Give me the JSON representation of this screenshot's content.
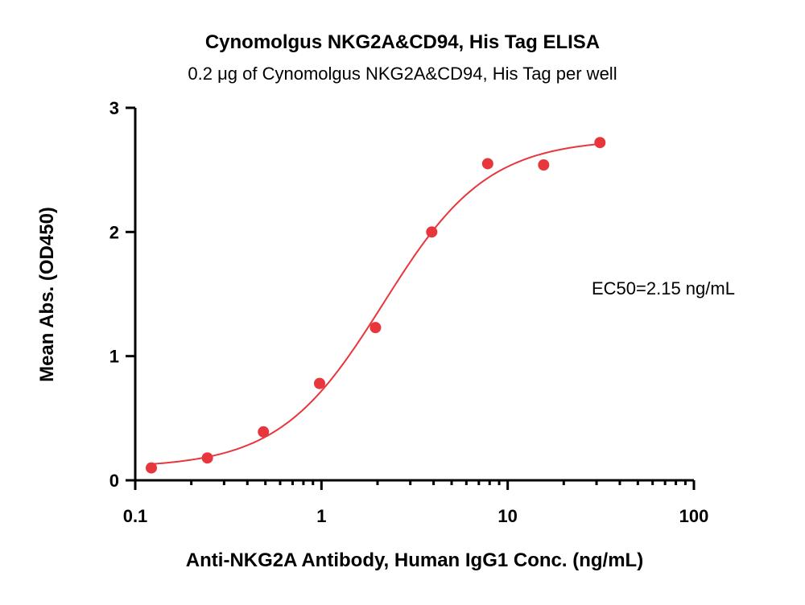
{
  "chart_data": {
    "type": "scatter",
    "title": "Cynomolgus NKG2A&CD94, His Tag ELISA",
    "subtitle": "0.2 μg of Cynomolgus NKG2A&CD94, His Tag per well",
    "xlabel": "Anti-NKG2A Antibody, Human IgG1 Conc. (ng/mL)",
    "ylabel": "Mean Abs. (OD450)",
    "x_scale": "log",
    "xlim": [
      0.1,
      100
    ],
    "ylim": [
      0,
      3
    ],
    "x_ticks": [
      0.1,
      1,
      10,
      100
    ],
    "x_tick_labels": [
      "0.1",
      "1",
      "10",
      "100"
    ],
    "y_ticks": [
      0,
      1,
      2,
      3
    ],
    "y_tick_labels": [
      "0",
      "1",
      "2",
      "3"
    ],
    "grid": false,
    "color": "#e8363d",
    "series": [
      {
        "x": [
          0.122,
          0.244,
          0.488,
          0.977,
          1.95,
          3.91,
          7.81,
          15.6,
          31.3
        ],
        "y": [
          0.1,
          0.18,
          0.39,
          0.78,
          1.23,
          2.0,
          2.55,
          2.54,
          2.72
        ]
      }
    ],
    "fit": {
      "type": "4PL",
      "bottom": 0.1,
      "top": 2.75,
      "ec50": 2.15,
      "hill": 1.55
    },
    "annotation": "EC50=2.15 ng/mL"
  }
}
